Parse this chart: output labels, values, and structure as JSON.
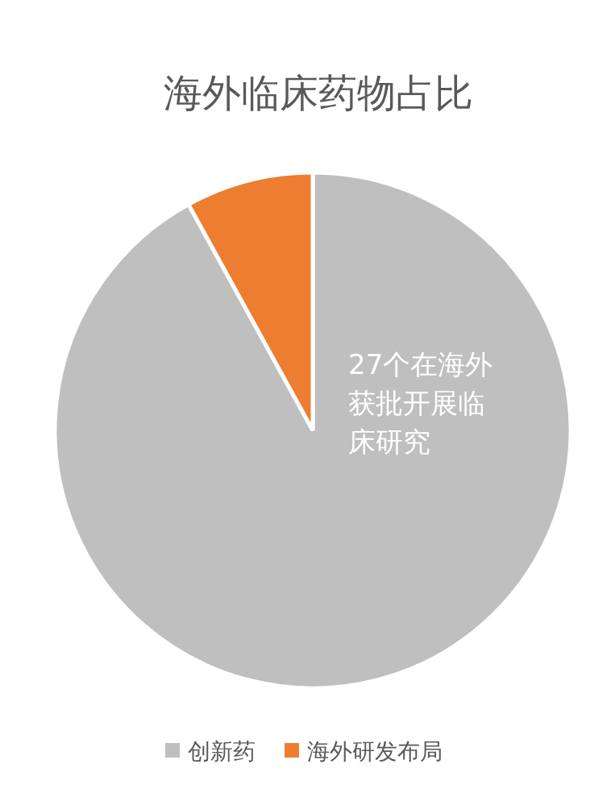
{
  "chart_data": {
    "type": "pie",
    "title": "海外临床药物占比",
    "categories": [
      "创新药",
      "海外研发布局"
    ],
    "values": [
      92,
      8
    ],
    "colors": [
      "#bfbfbf",
      "#ed7d31"
    ],
    "legend": "bottom",
    "annotations": [
      "27个在海外获批开展临床研究"
    ]
  }
}
